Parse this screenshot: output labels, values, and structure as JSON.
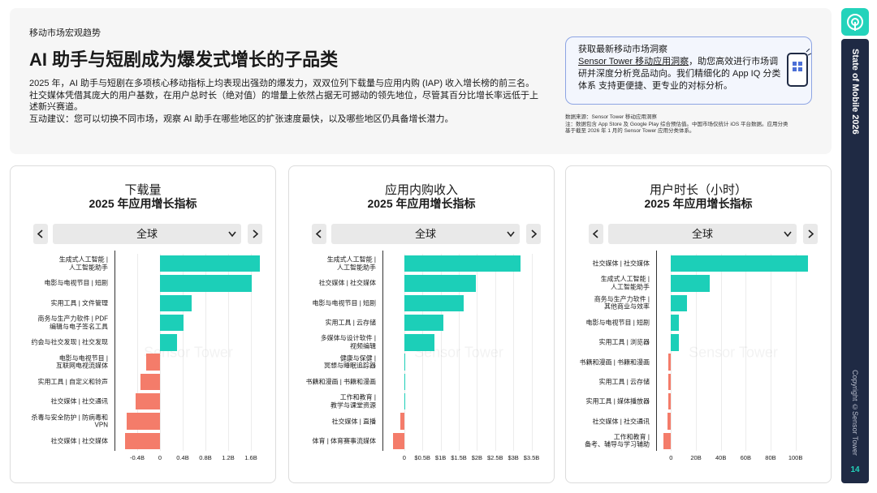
{
  "header": {
    "kicker": "移动市场宏观趋势",
    "title": "AI 助手与短剧成为爆发式增长的子品类",
    "paragraph": "2025 年，AI 助手与短剧在多项核心移动指标上均表现出强劲的爆发力，双双位列下载量与应用内购 (IAP) 收入增长榜的前三名。社交媒体凭借其庞大的用户基数，在用户总时长（绝对值）的增量上依然占据无可撼动的领先地位，尽管其百分比增长率远低于上述新兴赛道。",
    "suggestion": "互动建议：您可以切换不同市场，观察 AI 助手在哪些地区的扩张速度最快，以及哪些地区仍具备增长潜力。"
  },
  "callout": {
    "title": "获取最新移动市场洞察",
    "link": "Sensor Tower 移动应用洞察",
    "text": "，助您高效进行市场调研并深度分析竞品动向。我们精细化的 App IQ 分类体系 支持更便捷、更专业的对标分析。"
  },
  "source": {
    "line1": "数据来源：Sensor Tower 移动应用洞察",
    "line2": "注：数据包含 App Store 及 Google Play 综合预估值。中国市场仅统计 iOS 平台数据。应用分类基于截至 2026 年 1 月的 Sensor Tower 应用分类体系。"
  },
  "sidebar": {
    "title": "State of Mobile 2026",
    "copyright": "Copyright ©Sensor Tower",
    "page": "14"
  },
  "chart_data": [
    {
      "type": "bar",
      "title": "下载量",
      "subtitle": "2025 年应用增长指标",
      "region": "全球",
      "watermark": "Sensor Tower",
      "categories": [
        "生成式人工智能 |\n人工智能助手",
        "电影与电视节目 | 短剧",
        "实用工具 | 文件管理",
        "商务与生产力软件 | PDF\n编辑与电子签名工具",
        "约会与社交发现 | 社交发现",
        "电影与电视节目 |\n互联网电视流媒体",
        "实用工具 | 自定义和铃声",
        "社交媒体 | 社交通讯",
        "杀毒与安全防护 | 防病毒和\nVPN",
        "社交媒体 | 社交媒体"
      ],
      "values": [
        1.75,
        1.62,
        0.55,
        0.42,
        0.3,
        -0.25,
        -0.35,
        -0.43,
        -0.58,
        -0.62
      ],
      "positive_color": "#1ccfb8",
      "negative_color": "#f47c6a",
      "xlim": [
        -0.8,
        1.8
      ],
      "xticks": [
        {
          "value": -0.4,
          "label": "-0.4B"
        },
        0,
        {
          "value": 0.4,
          "label": "0.4B"
        },
        {
          "value": 0.8,
          "label": "0.8B"
        },
        {
          "value": 1.2,
          "label": "1.2B"
        },
        {
          "value": 1.6,
          "label": "1.6B"
        }
      ],
      "grid": true
    },
    {
      "type": "bar",
      "title": "应用内购收入",
      "subtitle": "2025 年应用增长指标",
      "region": "全球",
      "watermark": "Sensor Tower",
      "categories": [
        "生成式人工智能 |\n人工智能助手",
        "社交媒体 | 社交媒体",
        "电影与电视节目 | 短剧",
        "实用工具 | 云存储",
        "多媒体与设计软件 |\n视频编辑",
        "健康与保健 |\n冥想与睡眠追踪器",
        "书籍和漫画 | 书籍和漫画",
        "工作和教育 |\n教学与课堂资源",
        "社交媒体 | 直播",
        "体育 | 体育赛事流媒体"
      ],
      "values": [
        3.2,
        1.98,
        1.64,
        1.07,
        0.82,
        0.03,
        0.02,
        0.02,
        -0.1,
        -0.3
      ],
      "positive_color": "#1ccfb8",
      "negative_color": "#f47c6a",
      "xlim": [
        -0.6,
        3.6
      ],
      "xticks": [
        0,
        {
          "value": 0.5,
          "label": "$0.5B"
        },
        {
          "value": 1,
          "label": "$1B"
        },
        {
          "value": 1.5,
          "label": "$1.5B"
        },
        {
          "value": 2,
          "label": "$2B"
        },
        {
          "value": 2.5,
          "label": "$2.5B"
        },
        {
          "value": 3,
          "label": "$3B"
        },
        {
          "value": 3.5,
          "label": "$3.5B"
        }
      ],
      "grid": true
    },
    {
      "type": "bar",
      "title": "用户时长（小时）",
      "subtitle": "2025 年应用增长指标",
      "region": "全球",
      "watermark": "Sensor Tower",
      "categories": [
        "社交媒体 | 社交媒体",
        "生成式人工智能 |\n人工智能助手",
        "商务与生产力软件 |\n其他商业与效率",
        "电影与电视节目 | 短剧",
        "实用工具 | 浏览器",
        "书籍和漫画 | 书籍和漫画",
        "实用工具 | 云存储",
        "实用工具 | 媒体播放器",
        "社交媒体 | 社交通讯",
        "工作和教育 |\n备考、辅导与学习辅助"
      ],
      "values": [
        110,
        31,
        12.5,
        6.5,
        6,
        -2,
        -2.5,
        -2.5,
        -3,
        -6
      ],
      "positive_color": "#1ccfb8",
      "negative_color": "#f47c6a",
      "xlim": [
        -12,
        112
      ],
      "xticks": [
        0,
        {
          "value": 20,
          "label": "20B"
        },
        {
          "value": 40,
          "label": "40B"
        },
        {
          "value": 60,
          "label": "60B"
        },
        {
          "value": 80,
          "label": "80B"
        },
        {
          "value": 100,
          "label": "100B"
        }
      ],
      "grid": true
    }
  ]
}
